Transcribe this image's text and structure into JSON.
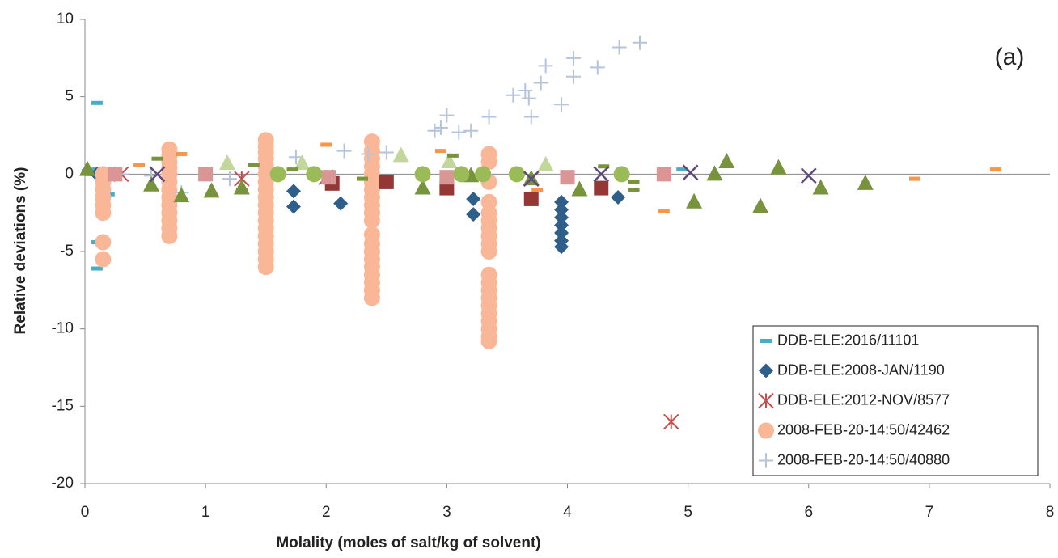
{
  "chart_data": {
    "type": "scatter",
    "annotation": "(a)",
    "x_label": "Molality (moles of salt/kg of solvent)",
    "y_label": "Relative deviations (%)",
    "xlim": [
      0,
      8
    ],
    "xticks": [
      0,
      1,
      2,
      3,
      4,
      5,
      6,
      7,
      8
    ],
    "ylim": [
      -20,
      10
    ],
    "yticks": [
      -20,
      -15,
      -10,
      -5,
      0,
      5,
      10
    ],
    "grid": false,
    "legend_position": "lower-right",
    "series": [
      {
        "name": "DDB-ELE:2016/11101",
        "color": "#4bacc6",
        "marker": "dash",
        "x": [
          0.02,
          0.05,
          0.1,
          0.1,
          0.1,
          0.1,
          0.15,
          0.2,
          3.6,
          4.8,
          4.95
        ],
        "values": [
          0.2,
          0,
          4.6,
          -6.1,
          -4.4,
          0.3,
          -0.8,
          -1.3,
          0,
          0.3,
          0.3
        ]
      },
      {
        "name": "DDB-ELE:2008-JAN/1190",
        "color": "#2e5f8a",
        "marker": "diamond",
        "x": [
          0.1,
          1.73,
          1.73,
          2.12,
          3.22,
          3.22,
          3.95,
          3.95,
          3.95,
          3.95,
          3.95,
          3.95,
          3.95,
          4.42
        ],
        "values": [
          0,
          -1.1,
          -2.1,
          -1.9,
          -1.6,
          -2.6,
          -1.8,
          -2.3,
          -2.8,
          -3.3,
          -3.8,
          -4.3,
          -4.7,
          -1.5
        ]
      },
      {
        "name": "DDB-ELE:2012-NOV/8577",
        "color": "#c0504d",
        "marker": "asterisk",
        "x": [
          0.3,
          1.3,
          2.0,
          4.86
        ],
        "values": [
          0,
          -0.3,
          -0.2,
          -16
        ]
      },
      {
        "name": "2008-FEB-20-14:50/42462",
        "color": "#f9b797",
        "marker": "circle",
        "x": [
          0.15,
          0.15,
          0.15,
          0.15,
          0.15,
          0.15,
          0.15,
          0.15,
          0.7,
          0.7,
          0.7,
          0.7,
          0.7,
          0.7,
          0.7,
          0.7,
          0.7,
          0.7,
          0.7,
          0.7,
          0.7,
          1.5,
          1.5,
          1.5,
          1.5,
          1.5,
          1.5,
          1.5,
          1.5,
          1.5,
          1.5,
          1.5,
          1.5,
          1.5,
          1.5,
          1.5,
          1.5,
          1.5,
          1.5,
          2.38,
          2.38,
          2.38,
          2.38,
          2.38,
          2.38,
          2.38,
          2.38,
          2.38,
          2.38,
          2.38,
          2.38,
          2.38,
          2.38,
          2.38,
          2.38,
          2.38,
          2.38,
          2.38,
          2.38,
          3.35,
          3.35,
          3.35,
          3.35,
          3.35,
          3.35,
          3.35,
          3.35,
          3.35,
          3.35,
          3.35,
          3.35,
          3.35,
          3.35,
          3.35,
          3.35,
          3.35,
          3.35,
          3.35,
          3.35
        ],
        "values": [
          0,
          -0.5,
          -1,
          -1.5,
          -2,
          -2.5,
          -4.4,
          -5.5,
          1.6,
          1.2,
          0.8,
          0.4,
          0,
          -0.5,
          -1,
          -1.5,
          -2,
          -2.5,
          -3,
          -3.5,
          -4,
          2.2,
          1.8,
          1.4,
          1,
          0.5,
          0,
          -0.5,
          -1,
          -1.5,
          -2,
          -2.5,
          -3,
          -3.5,
          -4,
          -4.5,
          -5,
          -5.5,
          -6,
          2.1,
          1.5,
          1,
          0.5,
          0,
          -0.5,
          -1,
          -1.5,
          -2,
          -2.5,
          -3,
          -3.9,
          -4.5,
          -5,
          -5.5,
          -6,
          -6.5,
          -7,
          -7.5,
          -8,
          1.3,
          0.8,
          -0.5,
          -1.8,
          -2.5,
          -3,
          -3.5,
          -4,
          -4.5,
          -5,
          -6.5,
          -7,
          -7.5,
          -8,
          -8.5,
          -9,
          -9.5,
          -10,
          -10.5,
          -10.8
        ]
      },
      {
        "name": "2008-FEB-20-14:50/40880",
        "color": "#b4c4de",
        "marker": "plus",
        "x": [
          2.9,
          2.95,
          3.0,
          3.1,
          3.2,
          3.35,
          3.55,
          3.65,
          3.68,
          3.7,
          3.78,
          3.82,
          3.95,
          4.05,
          4.05,
          4.25,
          4.43,
          4.6,
          2.15,
          2.35,
          2.5,
          1.75,
          1.2,
          0.55,
          0.8,
          0.3
        ],
        "values": [
          2.8,
          3.0,
          3.8,
          2.7,
          2.8,
          3.7,
          5.1,
          5.4,
          4.9,
          3.7,
          5.9,
          7.0,
          4.5,
          7.5,
          6.3,
          6.9,
          8.2,
          8.5,
          1.5,
          1.3,
          1.4,
          1.1,
          -0.3,
          -0.1,
          -1.2,
          0
        ]
      },
      {
        "color": "#77933c",
        "marker": "triangle",
        "x": [
          0.02,
          0.55,
          0.8,
          1.05,
          1.3,
          2.8,
          3.2,
          3.7,
          4.1,
          5.05,
          5.22,
          5.32,
          5.6,
          5.75,
          6.1,
          6.47
        ],
        "values": [
          0.3,
          -0.7,
          -1.4,
          -1.1,
          -0.9,
          -0.9,
          -0.1,
          -0.3,
          -1.0,
          -1.8,
          0,
          0.8,
          -2.1,
          0.4,
          -0.9,
          -0.6
        ]
      },
      {
        "color": "#c3d69b",
        "marker": "triangle",
        "x": [
          1.18,
          1.8,
          2.62,
          3.02,
          3.82
        ],
        "values": [
          0.7,
          0.7,
          1.2,
          0.8,
          0.6
        ]
      },
      {
        "color": "#f79646",
        "marker": "dash",
        "x": [
          0.45,
          0.8,
          2.0,
          2.95,
          3.75,
          4.8,
          6.88,
          7.55
        ],
        "values": [
          0.6,
          1.3,
          1.9,
          1.5,
          -1.0,
          -2.4,
          -0.3,
          0.3
        ]
      },
      {
        "color": "#77933c",
        "marker": "dash",
        "x": [
          0.6,
          1.3,
          1.4,
          1.72,
          2.3,
          3.0,
          3.05,
          4.3,
          4.55,
          4.55
        ],
        "values": [
          1,
          -1,
          0.6,
          0.3,
          -0.3,
          -1,
          1.2,
          0.5,
          -0.5,
          -1
        ]
      },
      {
        "color": "#953735",
        "marker": "square",
        "x": [
          2.05,
          2.5,
          3.0,
          3.7,
          4.28
        ],
        "values": [
          -0.6,
          -0.5,
          -0.9,
          -1.6,
          -0.9
        ]
      },
      {
        "color": "#da9694",
        "marker": "square",
        "x": [
          0.25,
          1.0,
          2.02,
          3.0,
          4.0,
          4.8
        ],
        "values": [
          0,
          0,
          -0.2,
          -0.2,
          -0.2,
          0
        ]
      },
      {
        "color": "#9bbb59",
        "marker": "circle",
        "x": [
          1.6,
          1.9,
          2.8,
          3.12,
          3.3,
          3.58,
          4.45
        ],
        "values": [
          0,
          0,
          0,
          0,
          0,
          0,
          0
        ]
      },
      {
        "color": "#604a7b",
        "marker": "x",
        "x": [
          0.6,
          3.7,
          4.28,
          5.02,
          6.0
        ],
        "values": [
          0,
          -0.3,
          0,
          0.1,
          -0.1
        ]
      }
    ]
  }
}
